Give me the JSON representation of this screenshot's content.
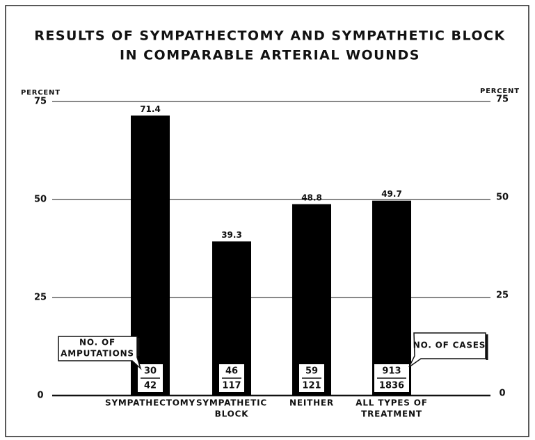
{
  "chart_data": {
    "type": "bar",
    "title": [
      "RESULTS OF SYMPATHECTOMY AND SYMPATHETIC BLOCK",
      "IN COMPARABLE ARTERIAL WOUNDS"
    ],
    "ylabel": "PERCENT",
    "y2label": "PERCENT",
    "categories": [
      [
        "SYMPATHECTOMY"
      ],
      [
        "SYMPATHETIC",
        "BLOCK"
      ],
      [
        "NEITHER"
      ],
      [
        "ALL TYPES OF",
        "TREATMENT"
      ]
    ],
    "values": [
      71.4,
      39.3,
      48.8,
      49.7
    ],
    "amputations": [
      30,
      46,
      59,
      913
    ],
    "cases": [
      42,
      117,
      121,
      1836
    ],
    "annotations": {
      "amputations": [
        "NO. OF",
        "AMPUTATIONS"
      ],
      "cases": "NO. OF CASES"
    },
    "color": "#000000",
    "ylim": [
      0,
      75
    ],
    "yticks": [
      0,
      25,
      50,
      75
    ],
    "y2lim": [
      0,
      75
    ],
    "y2ticks": [
      0,
      25,
      50,
      75
    ],
    "grid": true
  }
}
